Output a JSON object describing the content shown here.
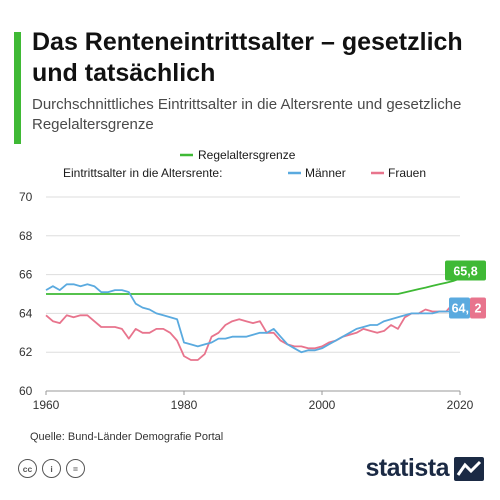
{
  "header": {
    "title": "Das Renteneintrittsalter – gesetzlich und tatsächlich",
    "subtitle": "Durchschnittliches Eintrittsalter in die Altersrente und gesetzliche Regelaltersgrenze"
  },
  "legend": {
    "first_row": "Regelaltersgrenze",
    "second_row_prefix": "Eintrittsalter in die Altersrente:",
    "men": "Männer",
    "women": "Frauen"
  },
  "chart_data": {
    "type": "line",
    "xlim": [
      1960,
      2020
    ],
    "ylim": [
      60,
      70
    ],
    "x_ticks": [
      "1960",
      "1980",
      "2000",
      "2020"
    ],
    "y_ticks": [
      "60",
      "62",
      "64",
      "66",
      "68",
      "70"
    ],
    "grid": true,
    "legend_position": "top",
    "end_labels": {
      "Regelaltersgrenze": "65,8",
      "Männer": "64,",
      "Frauen": "2"
    },
    "colors": {
      "Regelaltersgrenze": "#3fb935",
      "Männer": "#5aaadf",
      "Frauen": "#e8748d"
    },
    "series": [
      {
        "name": "Regelaltersgrenze",
        "x": [
          1960,
          2011,
          2012,
          2013,
          2014,
          2015,
          2016,
          2017,
          2018,
          2019,
          2020
        ],
        "values": [
          65.0,
          65.0,
          65.08,
          65.17,
          65.25,
          65.33,
          65.42,
          65.5,
          65.58,
          65.67,
          65.8
        ]
      },
      {
        "name": "Männer",
        "x": [
          1960,
          1961,
          1962,
          1963,
          1964,
          1965,
          1966,
          1967,
          1968,
          1969,
          1970,
          1971,
          1972,
          1973,
          1974,
          1975,
          1976,
          1977,
          1978,
          1979,
          1980,
          1981,
          1982,
          1983,
          1984,
          1985,
          1986,
          1987,
          1988,
          1989,
          1990,
          1991,
          1992,
          1993,
          1994,
          1995,
          1996,
          1997,
          1998,
          1999,
          2000,
          2001,
          2002,
          2003,
          2004,
          2005,
          2006,
          2007,
          2008,
          2009,
          2010,
          2011,
          2012,
          2013,
          2014,
          2015,
          2016,
          2017,
          2018,
          2019,
          2020
        ],
        "values": [
          65.2,
          65.4,
          65.2,
          65.5,
          65.5,
          65.4,
          65.5,
          65.4,
          65.1,
          65.1,
          65.2,
          65.2,
          65.1,
          64.5,
          64.3,
          64.2,
          64.0,
          63.9,
          63.8,
          63.7,
          62.5,
          62.4,
          62.3,
          62.4,
          62.5,
          62.7,
          62.7,
          62.8,
          62.8,
          62.8,
          62.9,
          63.0,
          63.0,
          63.2,
          62.8,
          62.4,
          62.2,
          62.0,
          62.1,
          62.1,
          62.2,
          62.4,
          62.6,
          62.8,
          63.0,
          63.2,
          63.3,
          63.4,
          63.4,
          63.6,
          63.7,
          63.8,
          63.9,
          64.0,
          64.0,
          64.0,
          64.0,
          64.1,
          64.1,
          64.1,
          64.2
        ]
      },
      {
        "name": "Frauen",
        "x": [
          1960,
          1961,
          1962,
          1963,
          1964,
          1965,
          1966,
          1967,
          1968,
          1969,
          1970,
          1971,
          1972,
          1973,
          1974,
          1975,
          1976,
          1977,
          1978,
          1979,
          1980,
          1981,
          1982,
          1983,
          1984,
          1985,
          1986,
          1987,
          1988,
          1989,
          1990,
          1991,
          1992,
          1993,
          1994,
          1995,
          1996,
          1997,
          1998,
          1999,
          2000,
          2001,
          2002,
          2003,
          2004,
          2005,
          2006,
          2007,
          2008,
          2009,
          2010,
          2011,
          2012,
          2013,
          2014,
          2015,
          2016,
          2017,
          2018,
          2019,
          2020
        ],
        "values": [
          63.9,
          63.6,
          63.5,
          63.9,
          63.8,
          63.9,
          63.9,
          63.6,
          63.3,
          63.3,
          63.3,
          63.2,
          62.7,
          63.2,
          63.0,
          63.0,
          63.2,
          63.2,
          63.0,
          62.6,
          61.8,
          61.6,
          61.6,
          61.9,
          62.8,
          63.0,
          63.4,
          63.6,
          63.7,
          63.6,
          63.5,
          63.6,
          63.0,
          63.0,
          62.6,
          62.4,
          62.3,
          62.3,
          62.2,
          62.2,
          62.3,
          62.5,
          62.6,
          62.8,
          62.9,
          63.0,
          63.2,
          63.1,
          63.0,
          63.1,
          63.4,
          63.2,
          63.8,
          64.0,
          64.0,
          64.2,
          64.1,
          64.1,
          64.1,
          64.5,
          64.2
        ]
      }
    ]
  },
  "footer": {
    "source": "Quelle: Bund-Länder Demografie Portal",
    "license_icons": [
      "cc",
      "i",
      "="
    ],
    "brand": "statista"
  }
}
